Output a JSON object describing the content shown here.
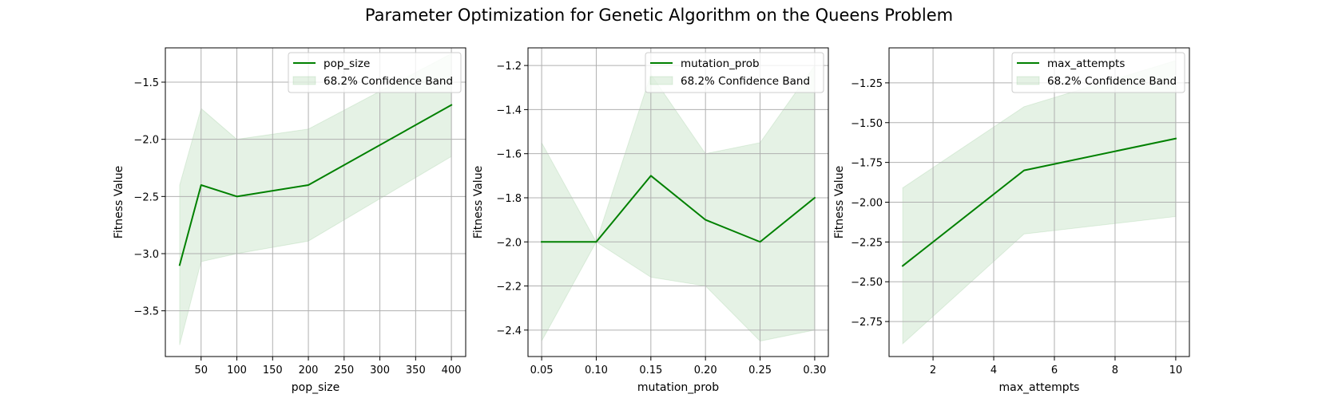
{
  "figure": {
    "title": "Parameter Optimization for Genetic Algorithm on the Queens Problem"
  },
  "chart_data": [
    {
      "type": "line",
      "title": "",
      "xlabel": "pop_size",
      "ylabel": "Fitness Value",
      "xlim": [
        0,
        420
      ],
      "ylim": [
        -3.9,
        -1.2
      ],
      "xticks": [
        50,
        100,
        150,
        200,
        250,
        300,
        350,
        400
      ],
      "xtick_labels": [
        "50",
        "100",
        "150",
        "200",
        "250",
        "300",
        "350",
        "400"
      ],
      "yticks": [
        -3.5,
        -3.0,
        -2.5,
        -2.0,
        -1.5
      ],
      "ytick_labels": [
        "−3.5",
        "−3.0",
        "−2.5",
        "−2.0",
        "−1.5"
      ],
      "grid": true,
      "legend_position": "top-right",
      "series": [
        {
          "name": "pop_size",
          "x": [
            20,
            50,
            100,
            200,
            400
          ],
          "y": [
            -3.1,
            -2.4,
            -2.5,
            -2.4,
            -1.7
          ],
          "color": "#008000"
        }
      ],
      "band": {
        "name": "68.2% Confidence Band",
        "x": [
          20,
          50,
          100,
          200,
          400
        ],
        "lower": [
          -3.8,
          -3.07,
          -3.0,
          -2.89,
          -2.15
        ],
        "upper": [
          -2.4,
          -1.73,
          -2.0,
          -1.91,
          -1.25
        ],
        "color": "#008000"
      }
    },
    {
      "type": "line",
      "title": "",
      "xlabel": "mutation_prob",
      "ylabel": "Fitness Value",
      "xlim": [
        0.0375,
        0.3125
      ],
      "ylim": [
        -2.52,
        -1.12
      ],
      "xticks": [
        0.05,
        0.1,
        0.15,
        0.2,
        0.25,
        0.3
      ],
      "xtick_labels": [
        "0.05",
        "0.10",
        "0.15",
        "0.20",
        "0.25",
        "0.30"
      ],
      "yticks": [
        -2.4,
        -2.2,
        -2.0,
        -1.8,
        -1.6,
        -1.4,
        -1.2
      ],
      "ytick_labels": [
        "−2.4",
        "−2.2",
        "−2.0",
        "−1.8",
        "−1.6",
        "−1.4",
        "−1.2"
      ],
      "grid": true,
      "legend_position": "top-right",
      "series": [
        {
          "name": "mutation_prob",
          "x": [
            0.05,
            0.1,
            0.15,
            0.2,
            0.25,
            0.3
          ],
          "y": [
            -2.0,
            -2.0,
            -1.7,
            -1.9,
            -2.0,
            -1.8
          ],
          "color": "#008000"
        }
      ],
      "band": {
        "name": "68.2% Confidence Band",
        "x": [
          0.05,
          0.1,
          0.15,
          0.2,
          0.25,
          0.3
        ],
        "lower": [
          -2.45,
          -2.0,
          -2.16,
          -2.2,
          -2.45,
          -2.4
        ],
        "upper": [
          -1.55,
          -2.0,
          -1.24,
          -1.6,
          -1.55,
          -1.2
        ],
        "color": "#008000"
      }
    },
    {
      "type": "line",
      "title": "",
      "xlabel": "max_attempts",
      "ylabel": "Fitness Value",
      "xlim": [
        0.55,
        10.45
      ],
      "ylim": [
        -2.97,
        -1.03
      ],
      "xticks": [
        2,
        4,
        6,
        8,
        10
      ],
      "xtick_labels": [
        "2",
        "4",
        "6",
        "8",
        "10"
      ],
      "yticks": [
        -2.75,
        -2.5,
        -2.25,
        -2.0,
        -1.75,
        -1.5,
        -1.25
      ],
      "ytick_labels": [
        "−2.75",
        "−2.50",
        "−2.25",
        "−2.00",
        "−1.75",
        "−1.50",
        "−1.25"
      ],
      "grid": true,
      "legend_position": "top-right",
      "series": [
        {
          "name": "max_attempts",
          "x": [
            1,
            5,
            10
          ],
          "y": [
            -2.4,
            -1.8,
            -1.6
          ],
          "color": "#008000"
        }
      ],
      "band": {
        "name": "68.2% Confidence Band",
        "x": [
          1,
          5,
          10
        ],
        "lower": [
          -2.89,
          -2.2,
          -2.09
        ],
        "upper": [
          -1.91,
          -1.4,
          -1.11
        ],
        "color": "#008000"
      }
    }
  ]
}
